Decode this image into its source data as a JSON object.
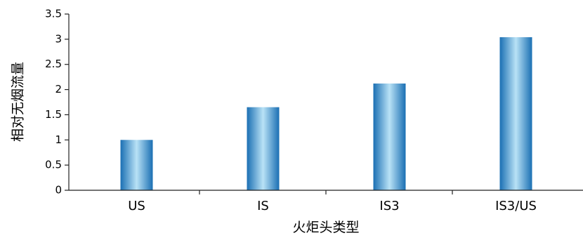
{
  "chart_data": {
    "type": "bar",
    "categories": [
      "US",
      "IS",
      "IS3",
      "IS3/US"
    ],
    "values": [
      1.0,
      1.65,
      2.12,
      3.04
    ],
    "xlabel": "火炬头类型",
    "ylabel": "相对无烟流量",
    "ylim": [
      0,
      3.5
    ],
    "yticks": [
      "0",
      "0.5",
      "1",
      "1.5",
      "2",
      "2.5",
      "3",
      "3.5"
    ],
    "grid": false,
    "legend": "none",
    "colors": {
      "bar_edge": "#1a6fb3",
      "bar_mid": "#b9e2f6",
      "axis": "#222222"
    }
  }
}
